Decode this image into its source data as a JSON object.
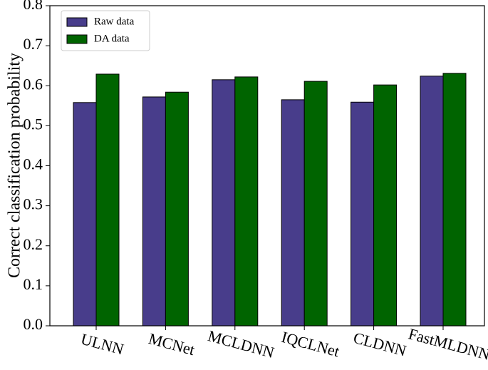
{
  "chart_data": {
    "type": "bar",
    "y_label": "Correct classification probability",
    "categories": [
      "ULNN",
      "MCNet",
      "MCLDNN",
      "IQCLNet",
      "CLDNN",
      "FastMLDNN"
    ],
    "series": [
      {
        "name": "Raw data",
        "color": "#483d8b",
        "values": [
          0.558,
          0.572,
          0.615,
          0.565,
          0.559,
          0.624
        ]
      },
      {
        "name": "DA data",
        "color": "#006400",
        "values": [
          0.629,
          0.584,
          0.622,
          0.611,
          0.602,
          0.631
        ]
      }
    ],
    "ylim": [
      0,
      0.8
    ],
    "yticks": [
      {
        "value": 0,
        "label": "0.0"
      },
      0.1,
      0.2,
      0.3,
      0.4,
      0.5,
      0.6,
      0.7,
      0.8
    ],
    "legend": "upper left"
  }
}
